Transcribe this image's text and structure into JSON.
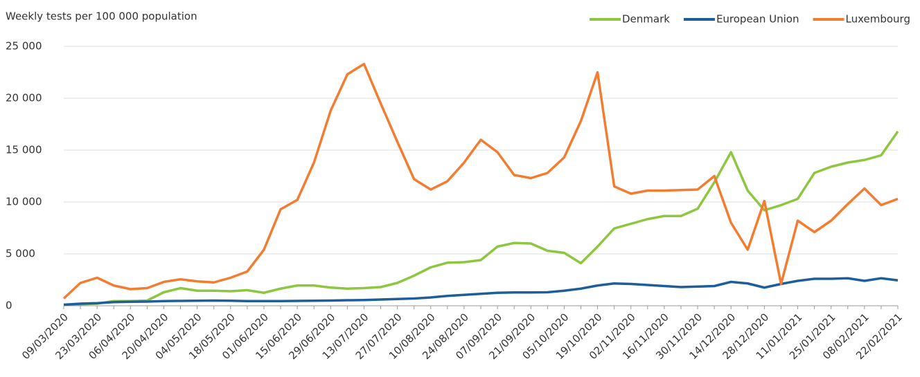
{
  "chart_data": {
    "type": "line",
    "title": "Weekly tests per 100 000 population",
    "categories": [
      "09/03/2020",
      null,
      "23/03/2020",
      null,
      "06/04/2020",
      null,
      "20/04/2020",
      null,
      "04/05/2020",
      null,
      "18/05/2020",
      null,
      "01/06/2020",
      null,
      "15/06/2020",
      null,
      "29/06/2020",
      null,
      "13/07/2020",
      null,
      "27/07/2020",
      null,
      "10/08/2020",
      null,
      "24/08/2020",
      null,
      "07/09/2020",
      null,
      "21/09/2020",
      null,
      "05/10/2020",
      null,
      "19/10/2020",
      null,
      "02/11/2020",
      null,
      "16/11/2020",
      null,
      "30/11/2020",
      null,
      "14/12/2020",
      null,
      "28/12/2020",
      null,
      "11/01/2021",
      null,
      "25/01/2021",
      null,
      "08/02/2021",
      null,
      "22/02/2021"
    ],
    "series": [
      {
        "name": "Denmark",
        "color": "#8dc63f",
        "values": [
          100,
          150,
          200,
          450,
          450,
          500,
          1300,
          1700,
          1450,
          1450,
          1400,
          1500,
          1250,
          1650,
          1950,
          1950,
          1750,
          1650,
          1700,
          1800,
          2200,
          2900,
          3700,
          4150,
          4200,
          4400,
          5700,
          6050,
          6000,
          5300,
          5100,
          4100,
          5700,
          7450,
          7900,
          8350,
          8650,
          8650,
          9350,
          11900,
          14800,
          11100,
          9200,
          9700,
          10300,
          12800,
          13400,
          13800,
          14050,
          14500,
          16800
        ]
      },
      {
        "name": "European Union",
        "color": "#1d5e9b",
        "values": [
          100,
          200,
          250,
          350,
          380,
          400,
          450,
          470,
          480,
          500,
          480,
          450,
          450,
          450,
          470,
          480,
          500,
          530,
          550,
          600,
          650,
          700,
          800,
          950,
          1050,
          1150,
          1250,
          1280,
          1280,
          1300,
          1450,
          1650,
          1950,
          2150,
          2100,
          2000,
          1900,
          1800,
          1850,
          1900,
          2300,
          2150,
          1750,
          2100,
          2400,
          2600,
          2600,
          2650,
          2400,
          2650,
          2450
        ]
      },
      {
        "name": "Luxembourg",
        "color": "#f47c30",
        "values": [
          700,
          2200,
          2700,
          1950,
          1600,
          1700,
          2300,
          2550,
          2350,
          2250,
          2700,
          3300,
          5400,
          9300,
          10200,
          13800,
          18800,
          22300,
          23300,
          19500,
          15800,
          12200,
          11200,
          12000,
          13800,
          16000,
          14800,
          12600,
          12300,
          12800,
          14300,
          17800,
          22500,
          11500,
          10800,
          11100,
          11100,
          11150,
          11200,
          12500,
          8000,
          5400,
          10100,
          2100,
          8200,
          7100,
          8200,
          9800,
          11300,
          9700,
          10300
        ]
      }
    ],
    "ylim": [
      0,
      25000
    ],
    "yticks": [
      0,
      {
        "value": 5000,
        "label": "5 000"
      },
      {
        "value": 10000,
        "label": "10 000"
      },
      {
        "value": 15000,
        "label": "15 000"
      },
      {
        "value": 20000,
        "label": "20 000"
      },
      {
        "value": 25000,
        "label": "25 000"
      }
    ],
    "grid": true,
    "legend": "top-right"
  }
}
